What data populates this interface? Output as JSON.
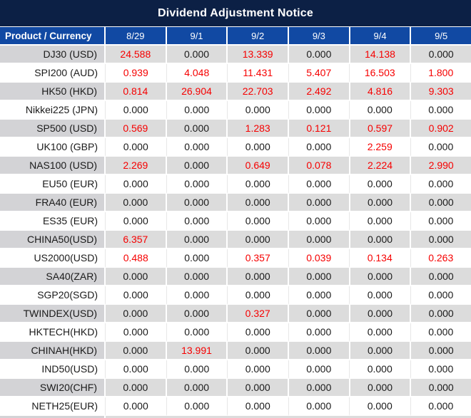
{
  "chart_data": {
    "type": "table",
    "title": "Dividend Adjustment Notice",
    "columns": [
      "Product / Currency",
      "8/29",
      "9/1",
      "9/2",
      "9/3",
      "9/4",
      "9/5"
    ],
    "rows": [
      {
        "product": "DJ30 (USD)",
        "values": [
          "24.588",
          "0.000",
          "13.339",
          "0.000",
          "14.138",
          "0.000"
        ]
      },
      {
        "product": "SPI200 (AUD)",
        "values": [
          "0.939",
          "4.048",
          "11.431",
          "5.407",
          "16.503",
          "1.800"
        ]
      },
      {
        "product": "HK50 (HKD)",
        "values": [
          "0.814",
          "26.904",
          "22.703",
          "2.492",
          "4.816",
          "9.303"
        ]
      },
      {
        "product": "Nikkei225 (JPN)",
        "values": [
          "0.000",
          "0.000",
          "0.000",
          "0.000",
          "0.000",
          "0.000"
        ]
      },
      {
        "product": "SP500 (USD)",
        "values": [
          "0.569",
          "0.000",
          "1.283",
          "0.121",
          "0.597",
          "0.902"
        ]
      },
      {
        "product": "UK100 (GBP)",
        "values": [
          "0.000",
          "0.000",
          "0.000",
          "0.000",
          "2.259",
          "0.000"
        ]
      },
      {
        "product": "NAS100 (USD)",
        "values": [
          "2.269",
          "0.000",
          "0.649",
          "0.078",
          "2.224",
          "2.990"
        ]
      },
      {
        "product": "EU50 (EUR)",
        "values": [
          "0.000",
          "0.000",
          "0.000",
          "0.000",
          "0.000",
          "0.000"
        ]
      },
      {
        "product": "FRA40 (EUR)",
        "values": [
          "0.000",
          "0.000",
          "0.000",
          "0.000",
          "0.000",
          "0.000"
        ]
      },
      {
        "product": "ES35 (EUR)",
        "values": [
          "0.000",
          "0.000",
          "0.000",
          "0.000",
          "0.000",
          "0.000"
        ]
      },
      {
        "product": "CHINA50(USD)",
        "values": [
          "6.357",
          "0.000",
          "0.000",
          "0.000",
          "0.000",
          "0.000"
        ]
      },
      {
        "product": "US2000(USD)",
        "values": [
          "0.488",
          "0.000",
          "0.357",
          "0.039",
          "0.134",
          "0.263"
        ]
      },
      {
        "product": "SA40(ZAR)",
        "values": [
          "0.000",
          "0.000",
          "0.000",
          "0.000",
          "0.000",
          "0.000"
        ]
      },
      {
        "product": "SGP20(SGD)",
        "values": [
          "0.000",
          "0.000",
          "0.000",
          "0.000",
          "0.000",
          "0.000"
        ]
      },
      {
        "product": "TWINDEX(USD)",
        "values": [
          "0.000",
          "0.000",
          "0.327",
          "0.000",
          "0.000",
          "0.000"
        ]
      },
      {
        "product": "HKTECH(HKD)",
        "values": [
          "0.000",
          "0.000",
          "0.000",
          "0.000",
          "0.000",
          "0.000"
        ]
      },
      {
        "product": "CHINAH(HKD)",
        "values": [
          "0.000",
          "13.991",
          "0.000",
          "0.000",
          "0.000",
          "0.000"
        ]
      },
      {
        "product": "IND50(USD)",
        "values": [
          "0.000",
          "0.000",
          "0.000",
          "0.000",
          "0.000",
          "0.000"
        ]
      },
      {
        "product": "SWI20(CHF)",
        "values": [
          "0.000",
          "0.000",
          "0.000",
          "0.000",
          "0.000",
          "0.000"
        ]
      },
      {
        "product": "NETH25(EUR)",
        "values": [
          "0.000",
          "0.000",
          "0.000",
          "0.000",
          "0.000",
          "0.000"
        ]
      }
    ],
    "layout": {
      "zero_value": "0.000",
      "nonzero_highlighted": true,
      "striped_rows": "first-row-gray"
    }
  },
  "colors": {
    "title_bg": "#0C2045",
    "header_bg": "#1149A3",
    "row_gray": "#DCDCDC",
    "label_gray": "#D3D3D6",
    "highlight_red": "#F60000",
    "text_black": "#1A1A1A"
  }
}
